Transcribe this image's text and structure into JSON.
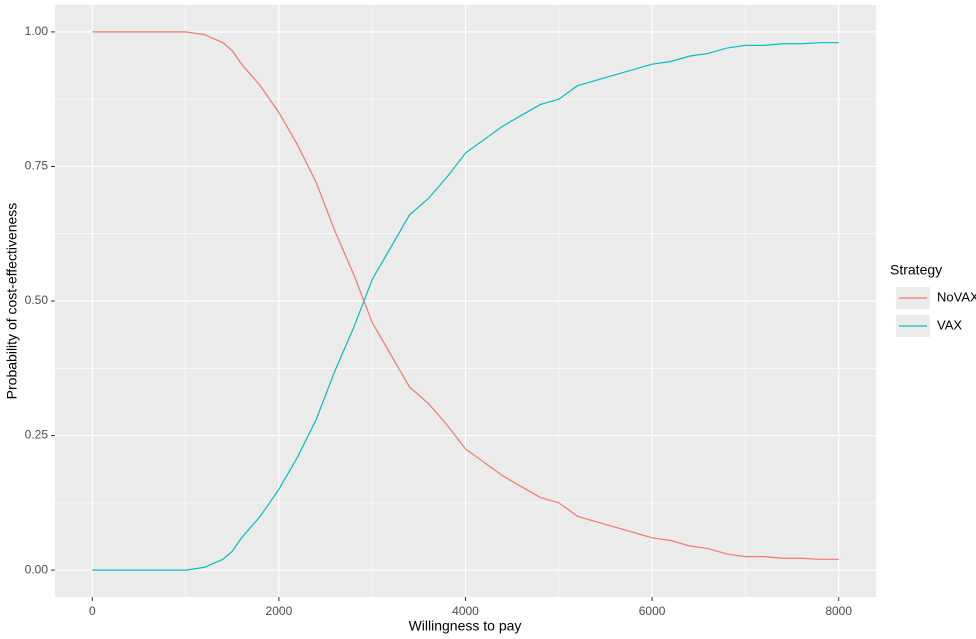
{
  "chart_data": {
    "type": "line",
    "x_label": "Willingness to pay",
    "y_label": "Probability of cost-effectiveness",
    "legend_title": "Strategy",
    "legend_position": "right",
    "grid": true,
    "minor_grid": true,
    "x": [
      0,
      200,
      400,
      600,
      800,
      1000,
      1200,
      1400,
      1500,
      1600,
      1800,
      2000,
      2200,
      2400,
      2600,
      2800,
      3000,
      3200,
      3400,
      3600,
      3800,
      4000,
      4200,
      4400,
      4600,
      4800,
      5000,
      5200,
      5400,
      5600,
      5800,
      6000,
      6200,
      6400,
      6600,
      6800,
      7000,
      7200,
      7400,
      7600,
      7800,
      8000
    ],
    "series": [
      {
        "name": "NoVAX",
        "color": "#F8766D",
        "values": [
          1,
          1,
          1,
          1,
          1,
          1,
          0.995,
          0.98,
          0.965,
          0.94,
          0.9,
          0.85,
          0.79,
          0.72,
          0.63,
          0.55,
          0.46,
          0.4,
          0.34,
          0.31,
          0.27,
          0.225,
          0.2,
          0.175,
          0.155,
          0.135,
          0.125,
          0.1,
          0.09,
          0.08,
          0.07,
          0.06,
          0.055,
          0.045,
          0.04,
          0.03,
          0.025,
          0.025,
          0.022,
          0.022,
          0.02,
          0.02
        ]
      },
      {
        "name": "VAX",
        "color": "#00BFC4",
        "values": [
          0,
          0,
          0,
          0,
          0,
          0,
          0.005,
          0.02,
          0.035,
          0.06,
          0.1,
          0.15,
          0.21,
          0.28,
          0.37,
          0.45,
          0.54,
          0.6,
          0.66,
          0.69,
          0.73,
          0.775,
          0.8,
          0.825,
          0.845,
          0.865,
          0.875,
          0.9,
          0.91,
          0.92,
          0.93,
          0.94,
          0.945,
          0.955,
          0.96,
          0.97,
          0.975,
          0.975,
          0.978,
          0.978,
          0.98,
          0.98
        ]
      }
    ],
    "xlim": [
      -400,
      8400
    ],
    "xticks": [
      0,
      2000,
      4000,
      6000,
      8000
    ],
    "ylim": [
      -0.05,
      1.05
    ],
    "yticks": [
      {
        "value": 0,
        "label": "0.00"
      },
      {
        "value": 0.25,
        "label": "0.25"
      },
      {
        "value": 0.5,
        "label": "0.50"
      },
      {
        "value": 0.75,
        "label": "0.75"
      },
      {
        "value": 1,
        "label": "1.00"
      }
    ]
  }
}
